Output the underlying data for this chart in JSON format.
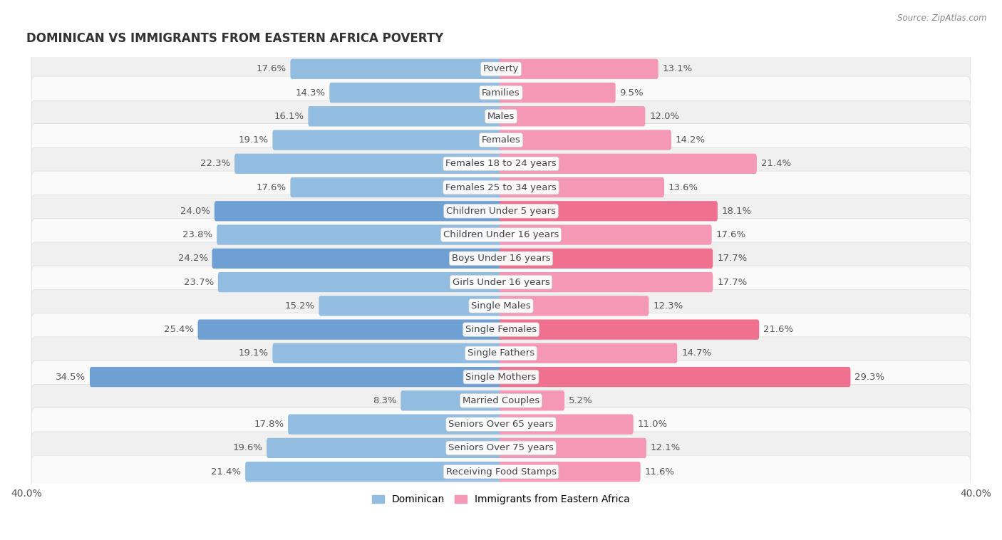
{
  "title": "DOMINICAN VS IMMIGRANTS FROM EASTERN AFRICA POVERTY",
  "source": "Source: ZipAtlas.com",
  "categories": [
    "Poverty",
    "Families",
    "Males",
    "Females",
    "Females 18 to 24 years",
    "Females 25 to 34 years",
    "Children Under 5 years",
    "Children Under 16 years",
    "Boys Under 16 years",
    "Girls Under 16 years",
    "Single Males",
    "Single Females",
    "Single Fathers",
    "Single Mothers",
    "Married Couples",
    "Seniors Over 65 years",
    "Seniors Over 75 years",
    "Receiving Food Stamps"
  ],
  "dominican": [
    17.6,
    14.3,
    16.1,
    19.1,
    22.3,
    17.6,
    24.0,
    23.8,
    24.2,
    23.7,
    15.2,
    25.4,
    19.1,
    34.5,
    8.3,
    17.8,
    19.6,
    21.4
  ],
  "eastern_africa": [
    13.1,
    9.5,
    12.0,
    14.2,
    21.4,
    13.6,
    18.1,
    17.6,
    17.7,
    17.7,
    12.3,
    21.6,
    14.7,
    29.3,
    5.2,
    11.0,
    12.1,
    11.6
  ],
  "dominican_color": "#92bce0",
  "eastern_africa_color": "#f498b6",
  "dominican_highlight_color": "#6fa0d4",
  "eastern_africa_highlight_color": "#f07090",
  "highlight_indices": [
    6,
    8,
    11,
    13
  ],
  "row_color_even": "#f0f0f0",
  "row_color_odd": "#fafafa",
  "axis_max": 40.0,
  "bar_height": 0.55,
  "label_fontsize": 9.5,
  "title_fontsize": 12,
  "legend_labels": [
    "Dominican",
    "Immigrants from Eastern Africa"
  ]
}
